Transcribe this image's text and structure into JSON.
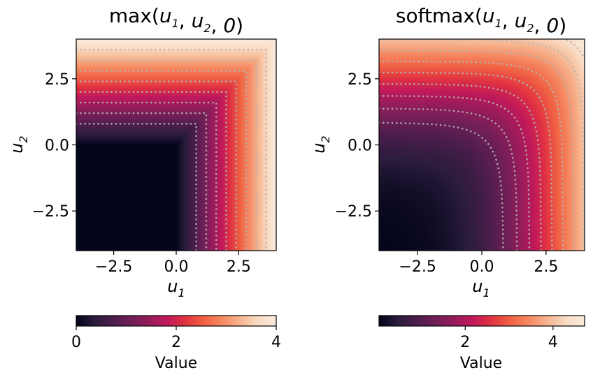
{
  "chart_data": [
    {
      "type": "heatmap",
      "function": "max",
      "title_text": "max(",
      "title_args": [
        {
          "name": "u",
          "sub": "1"
        },
        {
          "name": "u",
          "sub": "2"
        },
        {
          "name": "0",
          "sub": ""
        }
      ],
      "xlabel": {
        "name": "u",
        "sub": "1"
      },
      "ylabel": {
        "name": "u",
        "sub": "2"
      },
      "xlim": [
        -4,
        4
      ],
      "ylim": [
        -4,
        4
      ],
      "xticks": [
        -2.5,
        0.0,
        2.5
      ],
      "yticks": [
        -2.5,
        0.0,
        2.5
      ],
      "xtick_labels": [
        "−2.5",
        "0.0",
        "2.5"
      ],
      "ytick_labels": [
        "−2.5",
        "0.0",
        "2.5"
      ],
      "contour_levels": [
        0.8,
        1.2,
        1.6,
        2.0,
        2.4,
        2.8,
        3.2,
        3.6
      ],
      "colorbar": {
        "label": "Value",
        "range": [
          0,
          4
        ],
        "ticks": [
          0,
          2,
          4
        ],
        "tick_labels": [
          "0",
          "2",
          "4"
        ]
      },
      "colormap": "rocket",
      "grid": false
    },
    {
      "type": "heatmap",
      "function": "softmax",
      "title_text": "softmax(",
      "title_args": [
        {
          "name": "u",
          "sub": "1"
        },
        {
          "name": "u",
          "sub": "2"
        },
        {
          "name": "0",
          "sub": ""
        }
      ],
      "xlabel": {
        "name": "u",
        "sub": "1"
      },
      "ylabel": {
        "name": "u",
        "sub": "2"
      },
      "xlim": [
        -4,
        4
      ],
      "ylim": [
        -4,
        4
      ],
      "xticks": [
        -2.5,
        0.0,
        2.5
      ],
      "yticks": [
        -2.5,
        0.0,
        2.5
      ],
      "xtick_labels": [
        "−2.5",
        "0.0",
        "2.5"
      ],
      "ytick_labels": [
        "−2.5",
        "0.0",
        "2.5"
      ],
      "contour_levels": [
        1.2,
        1.6,
        2.0,
        2.4,
        2.8,
        3.2,
        3.6,
        4.0,
        4.4
      ],
      "colorbar": {
        "label": "Value",
        "range": [
          0.036,
          4.72
        ],
        "ticks": [
          2,
          4
        ],
        "tick_labels": [
          "2",
          "4"
        ]
      },
      "colormap": "rocket",
      "grid": false
    }
  ],
  "colors": {
    "colormap_stops": [
      "#03051a",
      "#2b1c3d",
      "#4c1d4b",
      "#701f57",
      "#971c5b",
      "#c1195a",
      "#e13342",
      "#f06043",
      "#f58860",
      "#f6b48e",
      "#f9dcc4",
      "#faebdd"
    ],
    "contour_line": "#b4b4b4"
  }
}
